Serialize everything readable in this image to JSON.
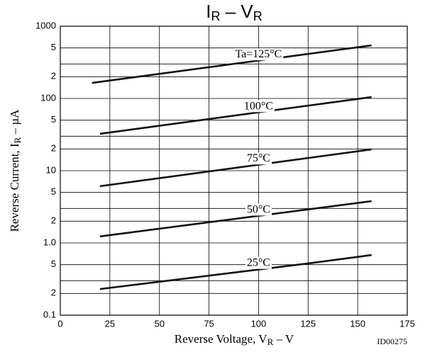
{
  "chart_data": {
    "type": "line",
    "title": [
      "I",
      "R",
      " – V",
      "R"
    ],
    "xlabel": [
      "Reverse Voltage, V",
      "R",
      " – V"
    ],
    "ylabel": [
      "Reverse Current, I",
      "R",
      " – µA"
    ],
    "annotation": "ID00275",
    "xlim": [
      0,
      175
    ],
    "xticks": [
      0,
      25,
      50,
      75,
      100,
      125,
      150,
      175
    ],
    "ylim": [
      0.1,
      1000
    ],
    "log_y": true,
    "grid": true,
    "yticks": [
      1000,
      {
        "value": 500,
        "label": "5"
      },
      {
        "value": 200,
        "label": "2"
      },
      100,
      {
        "value": 50,
        "label": "5"
      },
      {
        "value": 20,
        "label": "2"
      },
      10,
      5,
      2,
      {
        "value": 1,
        "label": "1.0"
      },
      {
        "value": 0.5,
        "label": "5"
      },
      {
        "value": 0.2,
        "label": "2"
      },
      0.1
    ],
    "yminor": [
      300,
      30,
      3,
      0.3
    ],
    "series": [
      {
        "name": "Ta=125°C",
        "color": "#111111",
        "x": [
          16,
          157
        ],
        "values": [
          164,
          543
        ]
      },
      {
        "name": "100°C",
        "color": "#111111",
        "x": [
          20,
          157
        ],
        "values": [
          32.4,
          104.6
        ]
      },
      {
        "name": "75°C",
        "color": "#111111",
        "x": [
          20,
          157
        ],
        "values": [
          6.1,
          19.7
        ]
      },
      {
        "name": "50°C",
        "color": "#111111",
        "x": [
          20,
          157
        ],
        "values": [
          1.23,
          3.79
        ]
      },
      {
        "name": "25°C",
        "color": "#111111",
        "x": [
          20,
          125,
          157
        ],
        "values": [
          0.23,
          0.52,
          0.68
        ]
      }
    ]
  }
}
